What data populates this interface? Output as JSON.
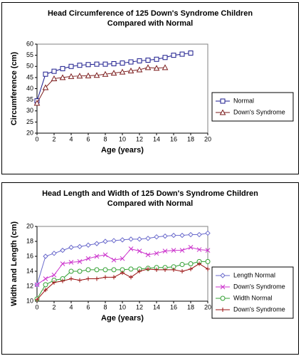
{
  "chart_data": [
    {
      "type": "line",
      "title": [
        "Head Circumference of 125 Down's Syndrome Children",
        "Compared with Normal"
      ],
      "x_label": "Age (years)",
      "y_label": "Circumference (cm)",
      "xlim": [
        0,
        20
      ],
      "xticks": [
        0,
        2,
        4,
        6,
        8,
        10,
        12,
        14,
        16,
        18,
        20
      ],
      "ylim": [
        20,
        60
      ],
      "yticks": [
        20,
        25,
        30,
        35,
        40,
        45,
        50,
        55,
        60
      ],
      "legend": "right",
      "series": [
        {
          "name": "Normal",
          "color": "#1a1a8c",
          "marker": "square",
          "x": [
            0,
            1,
            2,
            3,
            4,
            5,
            6,
            7,
            8,
            9,
            10,
            11,
            12,
            13,
            14,
            15,
            16,
            17,
            18
          ],
          "values": [
            34.5,
            46.5,
            47.8,
            49,
            50,
            50.5,
            50.8,
            51,
            51,
            51.2,
            51.5,
            52,
            52.5,
            52.8,
            53.2,
            54,
            55,
            55.5,
            56
          ]
        },
        {
          "name": "Down's Syndrome",
          "color": "#7a1a1a",
          "marker": "triangle",
          "x": [
            0,
            1,
            2,
            3,
            4,
            5,
            6,
            7,
            8,
            9,
            10,
            11,
            12,
            13,
            14,
            15
          ],
          "values": [
            33.5,
            40.5,
            44.5,
            45,
            45.5,
            45.7,
            45.8,
            46,
            46.5,
            47,
            47.5,
            48,
            48.5,
            49.5,
            49.2,
            49.5
          ]
        }
      ]
    },
    {
      "type": "line",
      "title": [
        "Head Length and Width of 125 Down's Syndrome Children",
        "Compared with Normal"
      ],
      "x_label": "Age (years)",
      "y_label": "Width and Length (cm)",
      "xlim": [
        0,
        20
      ],
      "xticks": [
        0,
        2,
        4,
        6,
        8,
        10,
        12,
        14,
        16,
        18,
        20
      ],
      "ylim": [
        10,
        20
      ],
      "yticks": [
        10,
        12,
        14,
        16,
        18,
        20
      ],
      "legend": "right",
      "series": [
        {
          "name": "Length Normal",
          "color": "#6a6acc",
          "marker": "diamond",
          "x": [
            0,
            1,
            2,
            3,
            4,
            5,
            6,
            7,
            8,
            9,
            10,
            11,
            12,
            13,
            14,
            15,
            16,
            17,
            18,
            19,
            20
          ],
          "values": [
            12.2,
            16,
            16.4,
            16.8,
            17.2,
            17.3,
            17.5,
            17.7,
            18,
            18.1,
            18.2,
            18.3,
            18.3,
            18.4,
            18.6,
            18.7,
            18.8,
            18.8,
            18.9,
            18.9,
            19.1
          ]
        },
        {
          "name": "Down's Syndrome",
          "color": "#cc33cc",
          "marker": "x",
          "x": [
            0,
            1,
            2,
            3,
            4,
            5,
            6,
            7,
            8,
            9,
            10,
            11,
            12,
            13,
            14,
            15,
            16,
            17,
            18,
            19,
            20
          ],
          "values": [
            12.2,
            13,
            13.5,
            15,
            15.2,
            15.3,
            15.7,
            16,
            16.2,
            15.5,
            15.7,
            17,
            16.7,
            16.2,
            16.4,
            16.7,
            16.8,
            16.8,
            17.2,
            16.9,
            16.8
          ]
        },
        {
          "name": "Width Normal",
          "color": "#33a033",
          "marker": "circle",
          "x": [
            0,
            1,
            2,
            3,
            4,
            5,
            6,
            7,
            8,
            9,
            10,
            11,
            12,
            13,
            14,
            15,
            16,
            17,
            18,
            19,
            20
          ],
          "values": [
            10.3,
            12.2,
            12.8,
            13,
            14,
            14,
            14.2,
            14.2,
            14.2,
            14.2,
            14.2,
            14.3,
            14.3,
            14.4,
            14.5,
            14.5,
            14.6,
            14.9,
            15,
            15.3,
            15.3
          ]
        },
        {
          "name": "Down's Syndrome",
          "color": "#9a1010",
          "marker": "plus",
          "x": [
            0,
            1,
            2,
            3,
            4,
            5,
            6,
            7,
            8,
            9,
            10,
            11,
            12,
            13,
            14,
            15,
            16,
            17,
            18,
            19,
            20
          ],
          "values": [
            10.2,
            11.5,
            12.5,
            12.7,
            13,
            12.8,
            13,
            13,
            13.2,
            13.2,
            13.8,
            13.2,
            14,
            14.3,
            14.2,
            14.2,
            14.2,
            14,
            14.3,
            15,
            14.3
          ]
        }
      ]
    }
  ]
}
